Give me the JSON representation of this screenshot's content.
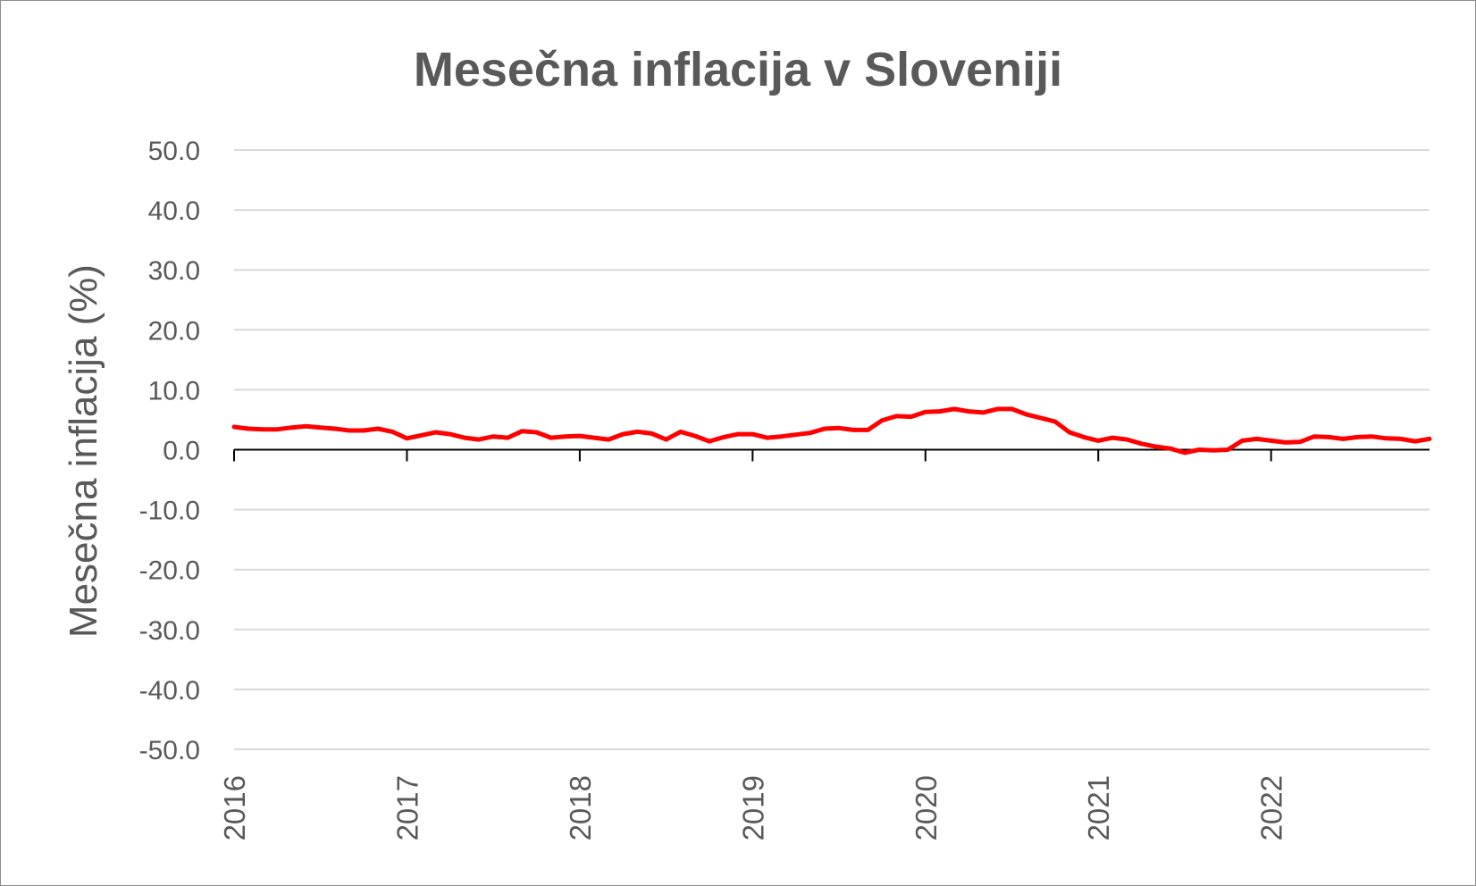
{
  "chart_data": {
    "type": "line",
    "title": "Mesečna inflacija v Sloveniji",
    "xlabel": "",
    "ylabel": "Mesečna inflacija (%)",
    "ylim": [
      -50,
      50
    ],
    "y_ticks": [
      "50.0",
      "40.0",
      "30.0",
      "20.0",
      "10.0",
      "0.0",
      "-10.0",
      "-20.0",
      "-30.0",
      "-40.0",
      "-50.0"
    ],
    "x_ticks": [
      "2016",
      "2017",
      "2018",
      "2019",
      "2020",
      "2021",
      "2022"
    ],
    "x_range_months": [
      0,
      83
    ],
    "grid": true,
    "legend": "none",
    "series": [
      {
        "color": "#ff0000",
        "values": [
          3.8,
          3.5,
          3.4,
          3.4,
          3.7,
          3.9,
          3.7,
          3.5,
          3.2,
          3.2,
          3.5,
          3.0,
          1.9,
          2.4,
          2.9,
          2.6,
          2.0,
          1.7,
          2.2,
          2.0,
          3.1,
          2.9,
          2.0,
          2.2,
          2.3,
          2.0,
          1.7,
          2.6,
          3.0,
          2.7,
          1.7,
          3.0,
          2.3,
          1.4,
          2.1,
          2.6,
          2.6,
          2.0,
          2.2,
          2.5,
          2.8,
          3.5,
          3.6,
          3.3,
          3.3,
          4.9,
          5.6,
          5.5,
          6.3,
          6.4,
          6.8,
          6.4,
          6.2,
          6.8,
          6.8,
          5.9,
          5.3,
          4.7,
          2.9,
          2.1,
          1.5,
          2.0,
          1.7,
          1.0,
          0.5,
          0.2,
          -0.5,
          0.0,
          -0.1,
          0.0,
          1.5,
          1.8,
          1.5,
          1.2,
          1.3,
          2.2,
          2.1,
          1.8,
          2.1,
          2.2,
          1.9,
          1.8,
          1.4,
          1.8
        ]
      }
    ]
  }
}
